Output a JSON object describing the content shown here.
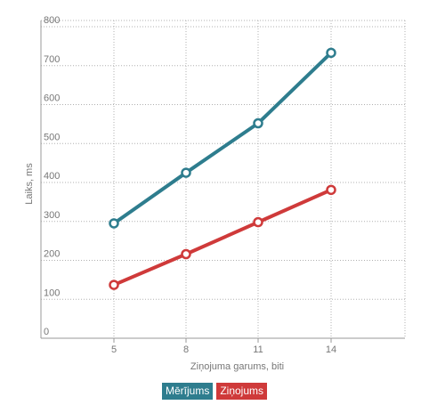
{
  "chart_data": {
    "type": "line",
    "xlabel": "Ziņojuma garums, biti",
    "ylabel": "Laiks, ms",
    "categories": [
      "5",
      "8",
      "11",
      "14"
    ],
    "ylim": [
      0,
      800
    ],
    "yticks": [
      "0",
      "100",
      "200",
      "300",
      "400",
      "500",
      "600",
      "700",
      "800"
    ],
    "grid": true,
    "legend_position": "bottom",
    "series": [
      {
        "name": "Mērījums",
        "color": "#2e7d8e",
        "values": [
          295,
          425,
          552,
          733
        ]
      },
      {
        "name": "Ziņojums",
        "color": "#cf3a3a",
        "values": [
          137,
          216,
          298,
          381
        ]
      }
    ]
  }
}
